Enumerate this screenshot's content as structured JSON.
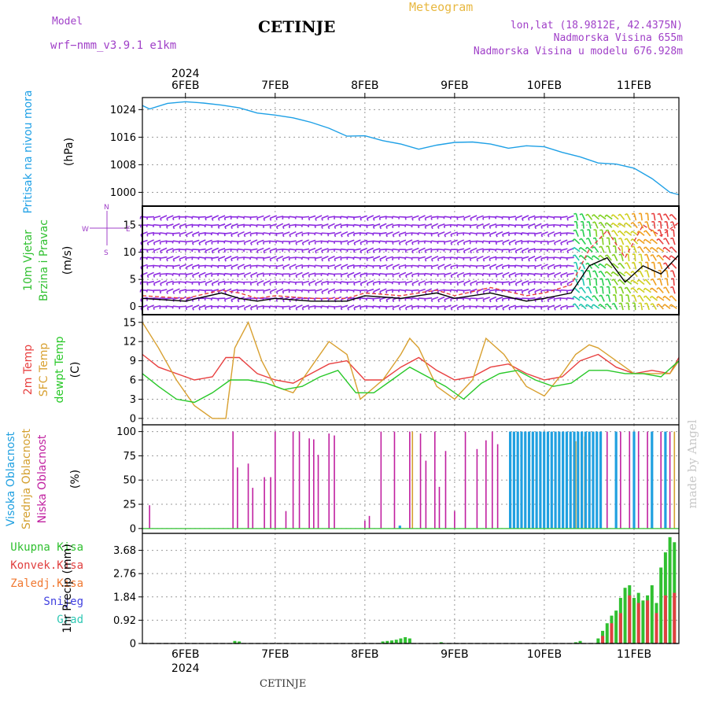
{
  "header": {
    "model_label": "Model",
    "model_name": "wrf−nmm_v3.9.1  e1km",
    "title": "CETINJE",
    "meteogram": "Meteogram",
    "lonlat": "lon,lat (18.9812E, 42.4375N)",
    "elevation": "Nadmorska Visina 655m",
    "model_elevation": "Nadmorska Visina u modelu 676.928m",
    "footer": "CETINJE",
    "watermark": "made by Angel"
  },
  "time_axis": {
    "year": "2024",
    "day_labels": [
      "6FEB",
      "7FEB",
      "8FEB",
      "9FEB",
      "10FEB",
      "11FEB"
    ],
    "range_days": [
      5.52,
      11.5
    ]
  },
  "colors": {
    "pressure": "#1ea0e6",
    "t2m": "#e84040",
    "tsfc": "#d8a030",
    "dewpt": "#28c828",
    "cloud_high": "#20a0e0",
    "cloud_mid": "#d4a030",
    "cloud_low": "#c020a0",
    "precip_total": "#30c030",
    "precip_conv": "#e04040",
    "wind_speed": "#000000",
    "wind_gust": "#e84040",
    "wind_arrows": "#9030e0"
  },
  "chart_data": [
    {
      "type": "line",
      "panel": "pressure",
      "ylabel": [
        "Pritisak na nivou mora",
        "(hPa)"
      ],
      "yticks": [
        1000,
        1008,
        1016,
        1024
      ],
      "ylim": [
        996,
        1027.5
      ],
      "series": [
        {
          "x": [
            5.52,
            5.6,
            5.8,
            6.0,
            6.2,
            6.4,
            6.6,
            6.8,
            7.0,
            7.2,
            7.4,
            7.6,
            7.8,
            8.0,
            8.2,
            8.4,
            8.6,
            8.8,
            9.0,
            9.2,
            9.4,
            9.6,
            9.8,
            10.0,
            10.2,
            10.4,
            10.6,
            10.8,
            11.0,
            11.2,
            11.4,
            11.5
          ],
          "y": [
            1025.2,
            1024.2,
            1025.8,
            1026.3,
            1025.9,
            1025.3,
            1024.5,
            1023.0,
            1022.4,
            1021.6,
            1020.3,
            1018.6,
            1016.3,
            1016.4,
            1015.0,
            1014.0,
            1012.5,
            1013.7,
            1014.5,
            1014.6,
            1014.0,
            1012.8,
            1013.5,
            1013.2,
            1011.6,
            1010.3,
            1008.5,
            1008.2,
            1007.0,
            1004.0,
            1000.0,
            999.3
          ]
        }
      ]
    },
    {
      "type": "line",
      "panel": "wind",
      "ylabel": [
        "10m Vjetar",
        "Brzina i Pravac",
        "(m/s)"
      ],
      "compass": [
        "W",
        "E",
        "N",
        "S"
      ],
      "yticks": [
        0,
        5,
        10,
        15
      ],
      "ylim": [
        -1.5,
        18.5
      ],
      "series": [
        {
          "name": "speed",
          "x": [
            5.52,
            6.0,
            6.4,
            6.6,
            6.8,
            7.0,
            7.4,
            7.8,
            8.0,
            8.4,
            8.8,
            9.0,
            9.4,
            9.8,
            10.0,
            10.3,
            10.5,
            10.7,
            10.9,
            11.1,
            11.3,
            11.5
          ],
          "y": [
            1.5,
            1.0,
            2.5,
            1.5,
            1.0,
            1.5,
            1.0,
            1.0,
            2.0,
            1.5,
            2.5,
            1.5,
            2.5,
            1.0,
            1.5,
            2.5,
            7.5,
            9.0,
            4.5,
            7.5,
            6.0,
            9.5
          ]
        },
        {
          "name": "gust",
          "x": [
            5.52,
            6.0,
            6.4,
            6.6,
            6.8,
            7.0,
            7.4,
            7.8,
            8.0,
            8.4,
            8.8,
            9.0,
            9.4,
            9.8,
            10.0,
            10.3,
            10.5,
            10.7,
            10.9,
            11.1,
            11.3,
            11.5
          ],
          "y": [
            2.0,
            1.5,
            3.0,
            2.5,
            1.5,
            2.0,
            1.5,
            1.5,
            2.5,
            2.0,
            3.0,
            2.0,
            3.5,
            2.0,
            2.5,
            4.0,
            10.5,
            14.0,
            9.0,
            15.0,
            13.0,
            15.5
          ]
        }
      ]
    },
    {
      "type": "line",
      "panel": "temperature",
      "ylabel": [
        "2m Temp",
        "SFC Temp",
        "dewpt Temp",
        "(C)"
      ],
      "yticks": [
        0,
        3,
        6,
        9,
        12,
        15
      ],
      "ylim": [
        -1,
        16.2
      ],
      "series": [
        {
          "name": "2m Temp",
          "x": [
            5.52,
            5.7,
            5.9,
            6.1,
            6.3,
            6.45,
            6.6,
            6.8,
            7.0,
            7.2,
            7.4,
            7.6,
            7.8,
            8.0,
            8.2,
            8.4,
            8.6,
            8.8,
            9.0,
            9.2,
            9.4,
            9.6,
            9.8,
            10.0,
            10.2,
            10.4,
            10.6,
            10.8,
            11.0,
            11.2,
            11.4,
            11.5
          ],
          "y": [
            10.0,
            8.0,
            7.0,
            6.0,
            6.5,
            9.5,
            9.5,
            7.0,
            6.0,
            5.5,
            7.0,
            8.5,
            9.0,
            6.0,
            6.0,
            8.0,
            9.5,
            7.5,
            6.0,
            6.5,
            8.0,
            8.5,
            7.0,
            6.0,
            6.5,
            9.0,
            10.0,
            8.0,
            7.0,
            7.5,
            7.0,
            9.5
          ]
        },
        {
          "name": "SFC Temp",
          "x": [
            5.52,
            5.7,
            5.9,
            6.1,
            6.3,
            6.45,
            6.55,
            6.7,
            6.85,
            7.0,
            7.2,
            7.4,
            7.6,
            7.8,
            7.95,
            8.2,
            8.4,
            8.5,
            8.6,
            8.8,
            9.0,
            9.2,
            9.35,
            9.55,
            9.8,
            10.0,
            10.2,
            10.35,
            10.5,
            10.6,
            10.8,
            11.0,
            11.2,
            11.4,
            11.5
          ],
          "y": [
            15.0,
            11.0,
            6.0,
            2.0,
            0.0,
            0.0,
            11.0,
            15.0,
            9.0,
            5.0,
            4.0,
            8.0,
            12.0,
            10.0,
            3.0,
            6.0,
            10.0,
            12.5,
            11.0,
            5.0,
            3.0,
            6.0,
            12.5,
            10.0,
            5.0,
            3.5,
            7.0,
            10.0,
            11.5,
            11.0,
            9.0,
            7.0,
            7.0,
            7.0,
            9.0
          ]
        },
        {
          "name": "dewpt Temp",
          "x": [
            5.52,
            5.7,
            5.9,
            6.1,
            6.3,
            6.5,
            6.7,
            6.9,
            7.1,
            7.3,
            7.5,
            7.7,
            7.9,
            8.1,
            8.3,
            8.5,
            8.7,
            8.9,
            9.1,
            9.3,
            9.5,
            9.7,
            9.9,
            10.1,
            10.3,
            10.5,
            10.7,
            10.9,
            11.1,
            11.3,
            11.5
          ],
          "y": [
            7.0,
            5.0,
            3.0,
            2.5,
            4.0,
            6.0,
            6.0,
            5.5,
            4.5,
            5.0,
            6.5,
            7.5,
            4.0,
            4.0,
            6.0,
            8.0,
            6.5,
            5.0,
            3.0,
            5.5,
            7.0,
            7.5,
            6.0,
            5.0,
            5.5,
            7.5,
            7.5,
            7.0,
            7.0,
            6.5,
            9.0
          ]
        }
      ]
    },
    {
      "type": "bar",
      "panel": "clouds",
      "ylabel": [
        "Visoka Oblacnost",
        "Srednja Oblacnost",
        "Niska Oblacnost",
        "(%)"
      ],
      "yticks": [
        0,
        25,
        50,
        75,
        100
      ],
      "ylim": [
        -5,
        107
      ],
      "series": [
        {
          "name": "Niska Oblacnost",
          "x": [
            5.6,
            6.53,
            6.58,
            6.7,
            6.75,
            6.88,
            6.95,
            7.0,
            7.12,
            7.2,
            7.27,
            7.38,
            7.43,
            7.48,
            7.6,
            7.66,
            8.0,
            8.05,
            8.18,
            8.33,
            8.5,
            8.62,
            8.68,
            8.78,
            8.83,
            8.9,
            9.0,
            9.12,
            9.25,
            9.35,
            9.42,
            9.48,
            9.62,
            10.7,
            10.85,
            10.95,
            11.05,
            11.15,
            11.2,
            11.3,
            11.4
          ],
          "y": [
            24,
            100,
            63,
            67,
            42,
            53,
            53,
            100,
            18,
            100,
            100,
            93,
            92,
            76,
            98,
            96,
            8,
            13,
            100,
            100,
            100,
            98,
            70,
            100,
            43,
            80,
            18,
            100,
            82,
            91,
            100,
            87,
            85,
            100,
            100,
            100,
            100,
            100,
            100,
            100,
            100
          ]
        },
        {
          "name": "Srednja Oblacnost",
          "x": [
            8.53,
            10.35,
            10.45,
            10.55,
            11.45
          ],
          "y": [
            100,
            90,
            95,
            100,
            100
          ]
        },
        {
          "name": "Visoka Oblacnost",
          "x_range": [
            9.62,
            10.65
          ],
          "step": 0.042,
          "value": 100,
          "extra_x": [
            8.39,
            10.8,
            11.0,
            11.2,
            11.35
          ],
          "extra_y": [
            3,
            100,
            100,
            100,
            100
          ]
        }
      ]
    },
    {
      "type": "bar",
      "panel": "precip",
      "ylabel": [
        "1hr Precip (mm)"
      ],
      "legend": [
        "Ukupna  Kisa",
        "Konvek.Kisa",
        "Zaledj.Kisa",
        "Snijeg",
        "Grad"
      ],
      "legend_colors": [
        "#30c030",
        "#e04040",
        "#f07830",
        "#4040e0",
        "#30c8b4"
      ],
      "yticks": [
        0,
        0.92,
        1.84,
        2.76,
        3.68
      ],
      "ylim": [
        0,
        4.35
      ],
      "series": [
        {
          "name": "Ukupna Kisa",
          "x": [
            6.55,
            6.6,
            8.2,
            8.25,
            8.3,
            8.35,
            8.4,
            8.45,
            8.5,
            8.85,
            10.35,
            10.4,
            10.6,
            10.65,
            10.7,
            10.75,
            10.8,
            10.85,
            10.9,
            10.95,
            11.0,
            11.05,
            11.1,
            11.15,
            11.2,
            11.25,
            11.3,
            11.35,
            11.4,
            11.45
          ],
          "y": [
            0.1,
            0.08,
            0.08,
            0.1,
            0.12,
            0.15,
            0.2,
            0.25,
            0.2,
            0.05,
            0.05,
            0.1,
            0.2,
            0.5,
            0.8,
            1.1,
            1.3,
            1.8,
            2.2,
            2.3,
            1.8,
            2.0,
            1.7,
            1.9,
            2.3,
            1.6,
            3.0,
            3.6,
            4.2,
            4.0
          ]
        },
        {
          "name": "Konvek.Kisa",
          "x": [
            10.65,
            10.75,
            10.85,
            10.95,
            11.05,
            11.15,
            11.25,
            11.35,
            11.45
          ],
          "y": [
            0.3,
            0.8,
            1.2,
            1.9,
            1.6,
            1.7,
            1.2,
            1.9,
            2.0
          ]
        }
      ]
    }
  ]
}
